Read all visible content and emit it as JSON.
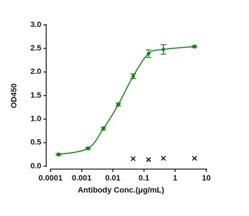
{
  "chart_data": {
    "type": "scatter",
    "xlabel": "Antibody Conc.(μg/mL)",
    "ylabel": "OD450",
    "xscale": "log",
    "xlim": [
      0.0001,
      10
    ],
    "xticks": [
      0.0001,
      0.001,
      0.01,
      0.1,
      1,
      10
    ],
    "ylim": [
      0,
      3
    ],
    "yticks": [
      {
        "value": 0,
        "label": "0.0"
      },
      0.5,
      {
        "value": 1,
        "label": "1.0"
      },
      1.5,
      {
        "value": 2,
        "label": "2.0"
      },
      2.5,
      {
        "value": 3,
        "label": "3.0"
      }
    ],
    "series": [
      {
        "color": "#1e7b1e",
        "marker": "diamond",
        "fit_curve": true,
        "x": [
          0.00018,
          0.0016,
          0.005,
          0.015,
          0.045,
          0.14,
          0.42,
          4.2
        ],
        "values": [
          0.25,
          0.38,
          0.8,
          1.31,
          1.91,
          2.39,
          2.48,
          2.54
        ],
        "errors": [
          0.02,
          0.02,
          0.03,
          0.03,
          0.05,
          0.08,
          0.1,
          0.02
        ]
      },
      {
        "color": "#111111",
        "marker": "x",
        "x": [
          0.045,
          0.14,
          0.42,
          4.2
        ],
        "values": [
          0.16,
          0.14,
          0.17,
          0.17
        ]
      }
    ]
  }
}
